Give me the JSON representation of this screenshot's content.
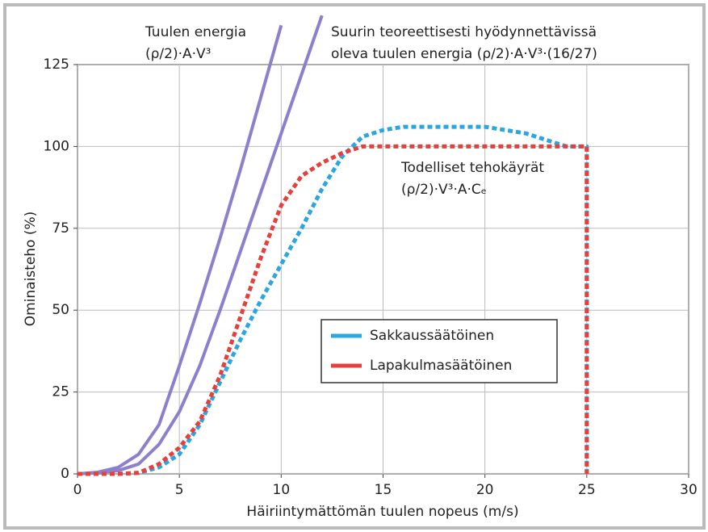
{
  "chart_data": {
    "type": "line",
    "xlabel": "Häiriintymättömän tuulen nopeus (m/s)",
    "ylabel": "Ominaisteho (%)",
    "xlim": [
      0,
      30
    ],
    "xticks": [
      0,
      5,
      10,
      15,
      20,
      25,
      30
    ],
    "ylim": [
      0,
      125
    ],
    "yticks": [
      0,
      25,
      50,
      75,
      100,
      125
    ],
    "grid": true,
    "legend": "center",
    "annotations": [
      {
        "lines": [
          "Tuulen energia",
          "(ρ/2)·A·V³"
        ]
      },
      {
        "lines": [
          "Suurin teoreettisesti hyödynnettävissä",
          "oleva tuulen energia (ρ/2)·A·V³·(16/27)"
        ]
      },
      {
        "lines": [
          "Todelliset tehokäyrät",
          "(ρ/2)·V³·A·Cₑ"
        ]
      }
    ],
    "series": [
      {
        "color": "#8c80cc",
        "style": "solid",
        "x": [
          0,
          1,
          2,
          3,
          4,
          5,
          6,
          7,
          8,
          9,
          10
        ],
        "values": [
          0,
          0.5,
          2,
          6,
          15,
          33,
          52,
          72,
          93,
          115,
          137
        ]
      },
      {
        "color": "#8c80cc",
        "style": "solid",
        "x": [
          0,
          1,
          2,
          3,
          4,
          5,
          6,
          7,
          8,
          9,
          10,
          11,
          12
        ],
        "values": [
          0,
          0.3,
          1,
          3,
          9,
          19,
          33,
          50,
          68,
          86,
          104,
          122,
          140
        ]
      },
      {
        "name": "Sakkaussäätöinen",
        "color": "#2ba6df",
        "style": "dotted",
        "x": [
          0,
          1,
          2,
          3,
          4,
          5,
          6,
          7,
          8,
          9,
          10,
          11,
          12,
          13,
          14,
          15,
          16,
          17,
          18,
          19,
          20,
          21,
          22,
          23,
          24,
          25,
          25
        ],
        "values": [
          0,
          0,
          0,
          0.3,
          2,
          6,
          15,
          28,
          41,
          53,
          64,
          75,
          87,
          97,
          103,
          105,
          106,
          106,
          106,
          106,
          106,
          105,
          104,
          102,
          100,
          100,
          0
        ]
      },
      {
        "name": "Lapakulmasäätöinen",
        "color": "#e5403c",
        "style": "dotted",
        "x": [
          0,
          1,
          2,
          3,
          4,
          5,
          6,
          7,
          8,
          9,
          10,
          11,
          12,
          13,
          14,
          15,
          16,
          17,
          18,
          19,
          20,
          21,
          22,
          23,
          24,
          25,
          25
        ],
        "values": [
          0,
          0,
          0,
          0.3,
          3,
          8,
          16,
          30,
          48,
          66,
          82,
          91,
          95,
          98,
          100,
          100,
          100,
          100,
          100,
          100,
          100,
          100,
          100,
          100,
          100,
          100,
          0
        ]
      }
    ]
  }
}
